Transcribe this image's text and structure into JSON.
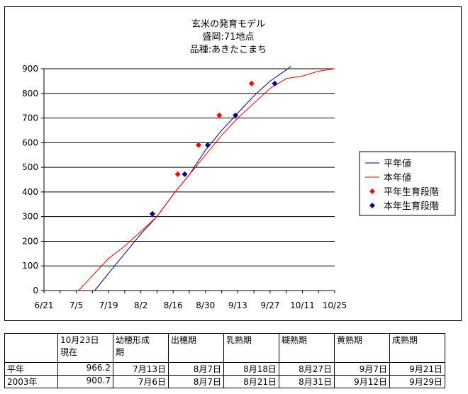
{
  "chart_data": {
    "type": "line",
    "title": [
      "玄米の発育モデル",
      "盛岡:71地点",
      "品種:あきたこまち"
    ],
    "xlabel": "",
    "ylabel": "",
    "x_tick_labels": [
      "6/21",
      "7/5",
      "7/19",
      "8/2",
      "8/16",
      "8/30",
      "9/13",
      "9/27",
      "10/11",
      "10/25"
    ],
    "x_ticks_days": [
      0,
      14,
      28,
      42,
      56,
      70,
      84,
      98,
      112,
      126
    ],
    "xlim_days": [
      0,
      126
    ],
    "x_origin_date": "6/21",
    "ylim": [
      0,
      900
    ],
    "y_ticks": [
      0,
      100,
      200,
      300,
      400,
      500,
      600,
      700,
      800,
      900
    ],
    "grid": "horizontal",
    "legend_position": "right",
    "series": [
      {
        "name": "平年値",
        "color": "#000080",
        "style": "line",
        "points": [
          [
            22,
            0
          ],
          [
            28,
            70
          ],
          [
            35,
            150
          ],
          [
            42,
            230
          ],
          [
            49,
            300
          ],
          [
            56,
            390
          ],
          [
            63,
            470
          ],
          [
            70,
            570
          ],
          [
            77,
            650
          ],
          [
            84,
            720
          ],
          [
            91,
            790
          ],
          [
            98,
            850
          ],
          [
            105,
            895
          ],
          [
            107,
            910
          ]
        ]
      },
      {
        "name": "本年値",
        "color": "#ff0000",
        "style": "line",
        "points": [
          [
            15,
            0
          ],
          [
            21,
            60
          ],
          [
            28,
            130
          ],
          [
            35,
            180
          ],
          [
            42,
            240
          ],
          [
            49,
            300
          ],
          [
            56,
            390
          ],
          [
            63,
            470
          ],
          [
            70,
            550
          ],
          [
            77,
            630
          ],
          [
            84,
            700
          ],
          [
            91,
            760
          ],
          [
            98,
            820
          ],
          [
            105,
            860
          ],
          [
            112,
            870
          ],
          [
            119,
            890
          ],
          [
            126,
            900
          ]
        ]
      },
      {
        "name": "平年生育段階",
        "color": "#ff0000",
        "style": "diamond",
        "points": [
          [
            47,
            311
          ],
          [
            58,
            472
          ],
          [
            67,
            590
          ],
          [
            76,
            711
          ],
          [
            90,
            840
          ]
        ]
      },
      {
        "name": "本年生育段階",
        "color": "#000080",
        "style": "diamond",
        "points": [
          [
            47,
            311
          ],
          [
            61,
            472
          ],
          [
            71,
            590
          ],
          [
            83,
            711
          ],
          [
            100,
            840
          ]
        ]
      }
    ]
  },
  "table": {
    "header": [
      "",
      "10月23日\n現在",
      "幼穂形成\n期",
      "出穂期",
      "乳熟期",
      "糊熟期",
      "黄熟期",
      "成熟期"
    ],
    "rows": [
      [
        "平年",
        "966.2",
        "7月13日",
        "8月7日",
        "8月18日",
        "8月27日",
        "9月7日",
        "9月21日"
      ],
      [
        "2003年",
        "900.7",
        "7月6日",
        "8月7日",
        "8月21日",
        "8月31日",
        "9月12日",
        "9月29日"
      ]
    ]
  }
}
